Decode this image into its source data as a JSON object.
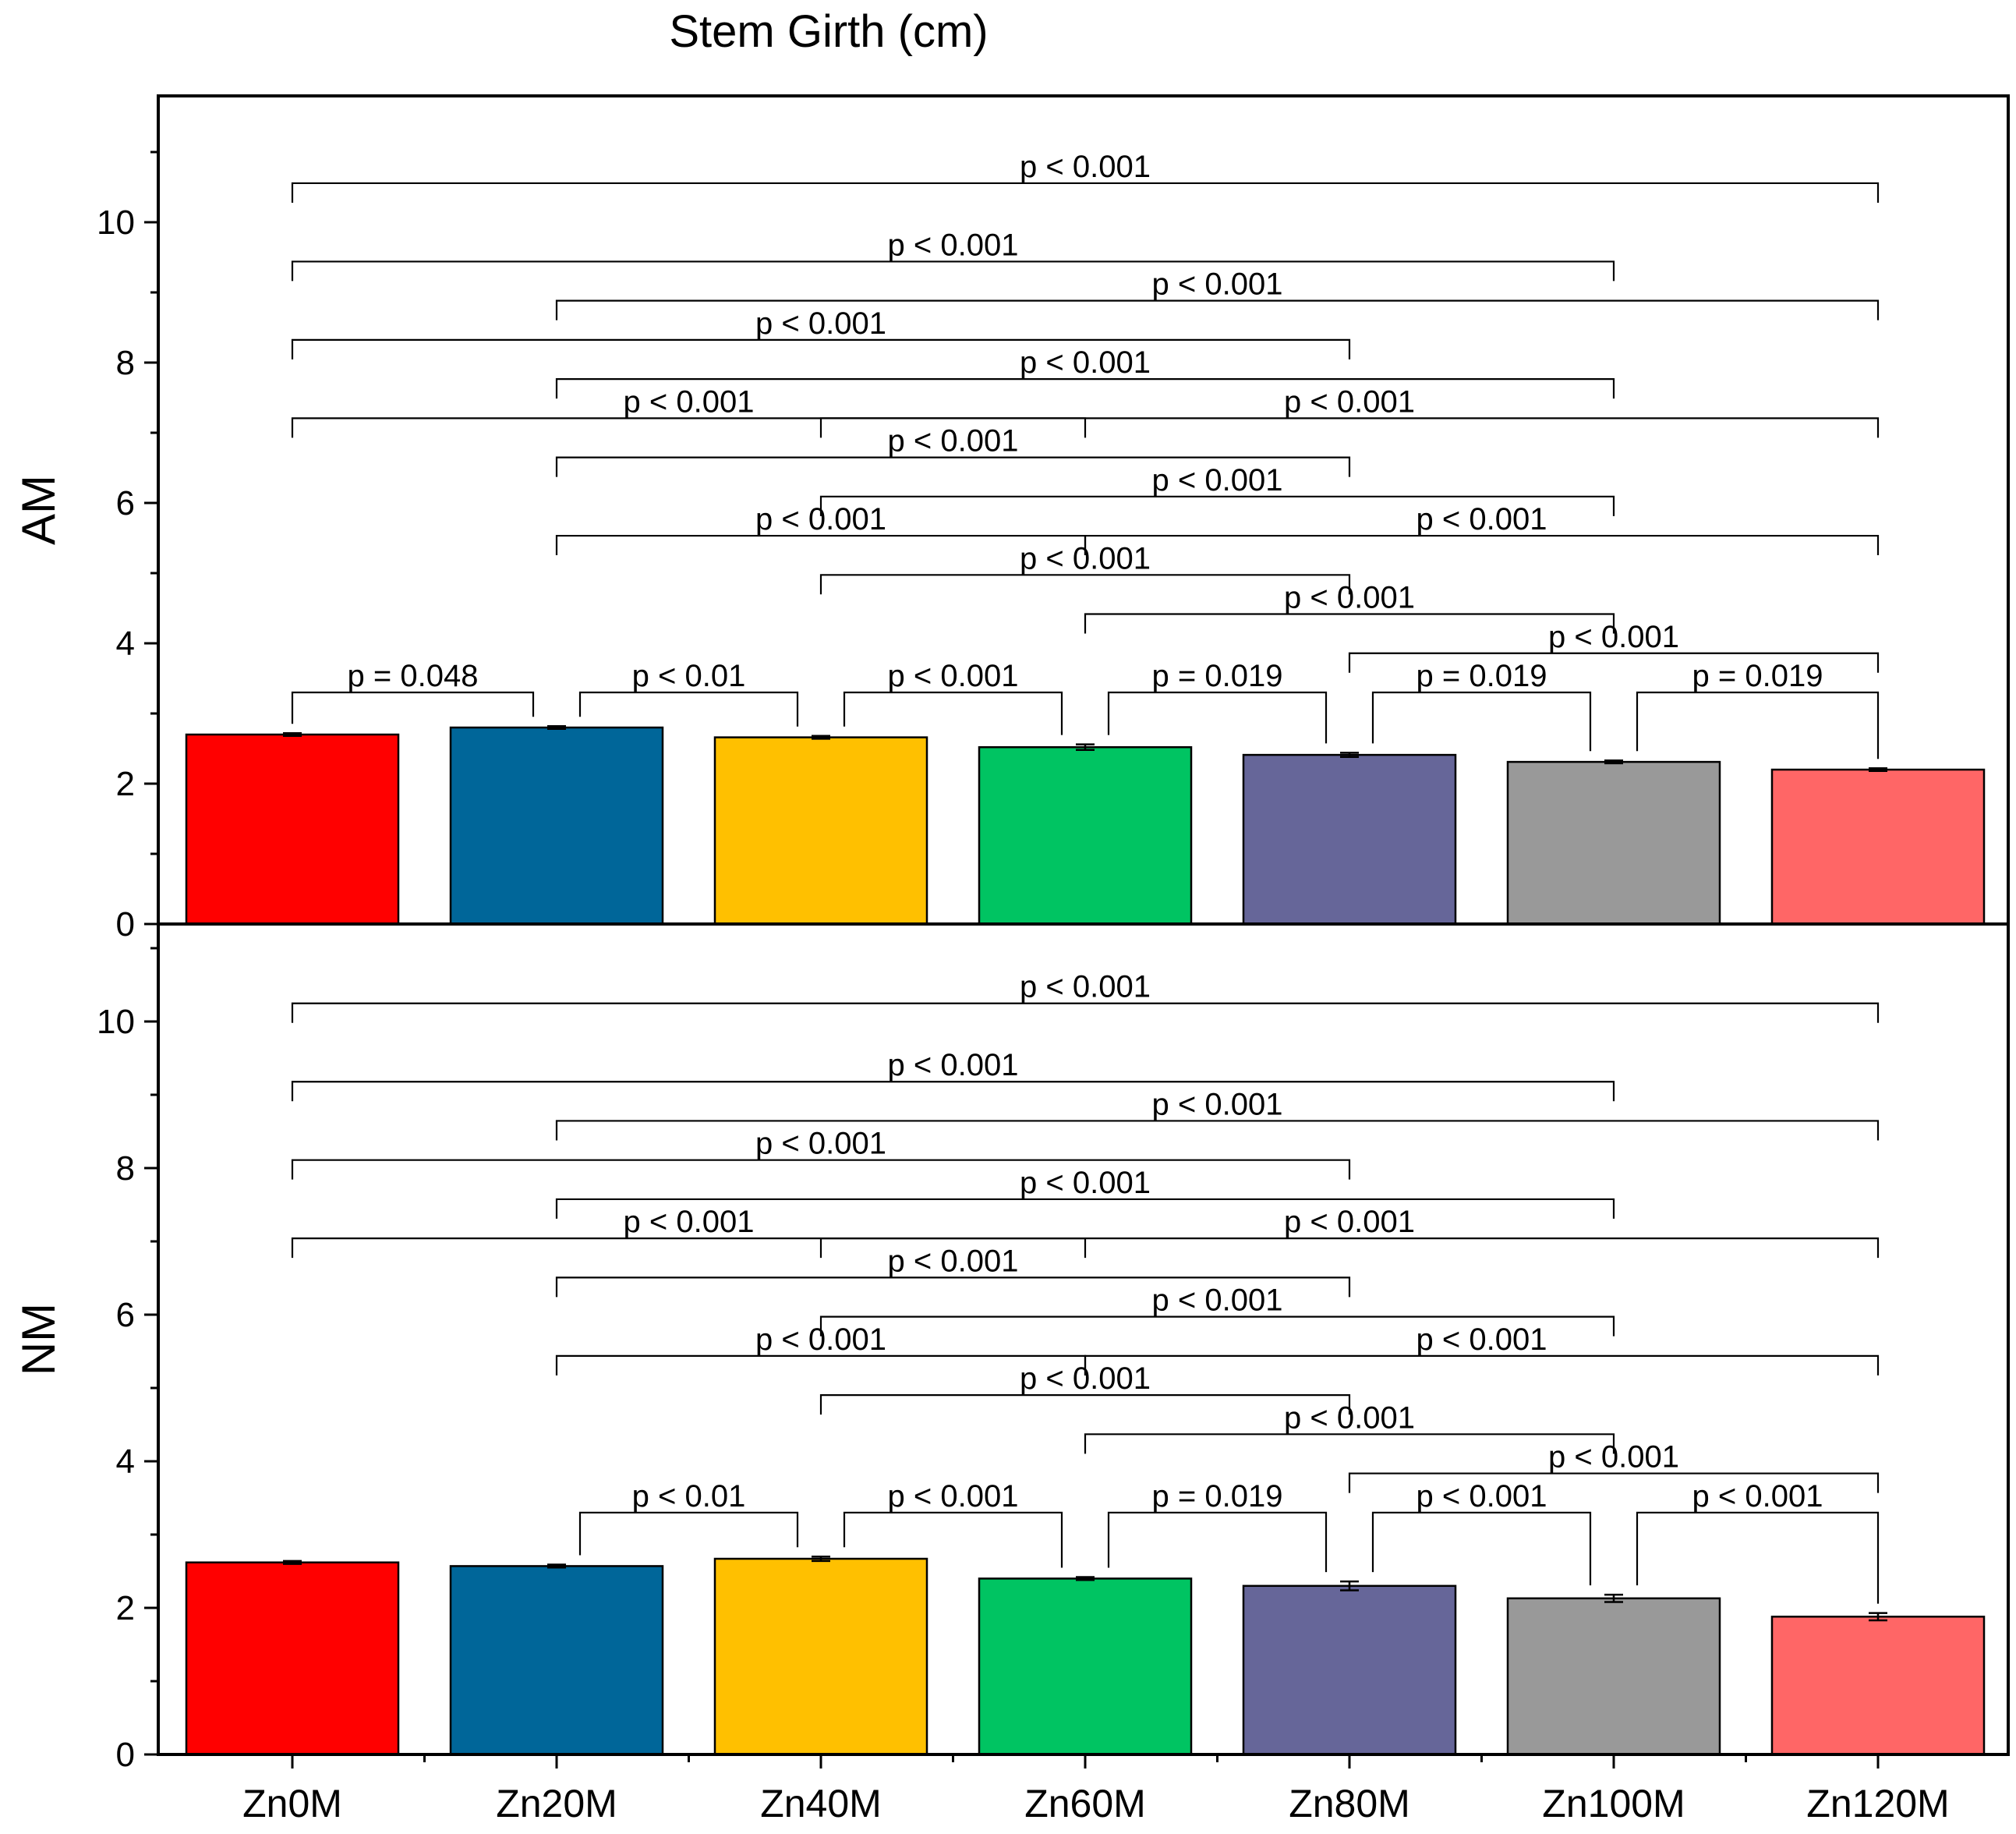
{
  "chart_data": {
    "type": "bar",
    "title": "Stem Girth (cm)",
    "categories": [
      "Zn0M",
      "Zn20M",
      "Zn40M",
      "Zn60M",
      "Zn80M",
      "Zn100M",
      "Zn120M"
    ],
    "bar_colors": [
      "#FF0000",
      "#006699",
      "#FFC000",
      "#00C462",
      "#666699",
      "#999999",
      "#FF6666"
    ],
    "ylim": [
      0,
      11.4
    ],
    "yticks": [
      0,
      2,
      4,
      6,
      8,
      10
    ],
    "tick_labels": [
      "0",
      "2",
      "4",
      "6",
      "8",
      "10"
    ],
    "panels": [
      {
        "name": "AM",
        "ylabel": "AM",
        "values": [
          2.7,
          2.8,
          2.66,
          2.52,
          2.41,
          2.31,
          2.2
        ],
        "errors": [
          0.02,
          0.02,
          0.02,
          0.04,
          0.03,
          0.02,
          0.02
        ],
        "comparisons": [
          {
            "groups": [
              0,
              6
            ],
            "label": "p < 0.001"
          },
          {
            "groups": [
              1,
              6
            ],
            "label": "p < 0.001"
          },
          {
            "groups": [
              0,
              5
            ],
            "label": "p < 0.001"
          },
          {
            "groups": [
              2,
              6
            ],
            "label": "p < 0.001"
          },
          {
            "groups": [
              1,
              5
            ],
            "label": "p < 0.001"
          },
          {
            "groups": [
              0,
              4
            ],
            "label": "p < 0.001"
          },
          {
            "groups": [
              3,
              6
            ],
            "label": "p < 0.001"
          },
          {
            "groups": [
              2,
              5
            ],
            "label": "p < 0.001"
          },
          {
            "groups": [
              1,
              4
            ],
            "label": "p < 0.001"
          },
          {
            "groups": [
              0,
              3
            ],
            "label": "p < 0.001"
          },
          {
            "groups": [
              4,
              6
            ],
            "label": "p < 0.001"
          },
          {
            "groups": [
              3,
              5
            ],
            "label": "p < 0.001"
          },
          {
            "groups": [
              2,
              4
            ],
            "label": "p < 0.001"
          },
          {
            "groups": [
              1,
              3
            ],
            "label": "p < 0.001"
          },
          {
            "groups": [
              0,
              1
            ],
            "label": "p = 0.048"
          },
          {
            "groups": [
              1,
              2
            ],
            "label": "p < 0.01"
          },
          {
            "groups": [
              2,
              3
            ],
            "label": "p < 0.001"
          },
          {
            "groups": [
              3,
              4
            ],
            "label": "p = 0.019"
          },
          {
            "groups": [
              4,
              5
            ],
            "label": "p = 0.019"
          },
          {
            "groups": [
              5,
              6
            ],
            "label": "p = 0.019"
          }
        ]
      },
      {
        "name": "NM",
        "ylabel": "NM",
        "values": [
          2.62,
          2.57,
          2.67,
          2.4,
          2.3,
          2.13,
          1.88
        ],
        "errors": [
          0.02,
          0.02,
          0.03,
          0.02,
          0.06,
          0.05,
          0.05
        ],
        "comparisons": [
          {
            "groups": [
              0,
              6
            ],
            "label": "p < 0.001"
          },
          {
            "groups": [
              1,
              6
            ],
            "label": "p < 0.001"
          },
          {
            "groups": [
              0,
              5
            ],
            "label": "p < 0.001"
          },
          {
            "groups": [
              2,
              6
            ],
            "label": "p < 0.001"
          },
          {
            "groups": [
              1,
              5
            ],
            "label": "p < 0.001"
          },
          {
            "groups": [
              0,
              4
            ],
            "label": "p < 0.001"
          },
          {
            "groups": [
              3,
              6
            ],
            "label": "p < 0.001"
          },
          {
            "groups": [
              2,
              5
            ],
            "label": "p < 0.001"
          },
          {
            "groups": [
              1,
              4
            ],
            "label": "p < 0.001"
          },
          {
            "groups": [
              0,
              3
            ],
            "label": "p < 0.001"
          },
          {
            "groups": [
              4,
              6
            ],
            "label": "p < 0.001"
          },
          {
            "groups": [
              3,
              5
            ],
            "label": "p < 0.001"
          },
          {
            "groups": [
              2,
              4
            ],
            "label": "p < 0.001"
          },
          {
            "groups": [
              1,
              3
            ],
            "label": "p < 0.001"
          },
          {
            "groups": [
              1,
              2
            ],
            "label": "p < 0.01"
          },
          {
            "groups": [
              2,
              3
            ],
            "label": "p < 0.001"
          },
          {
            "groups": [
              3,
              4
            ],
            "label": "p = 0.019"
          },
          {
            "groups": [
              4,
              5
            ],
            "label": "p < 0.001"
          },
          {
            "groups": [
              5,
              6
            ],
            "label": "p < 0.001"
          }
        ]
      }
    ]
  }
}
